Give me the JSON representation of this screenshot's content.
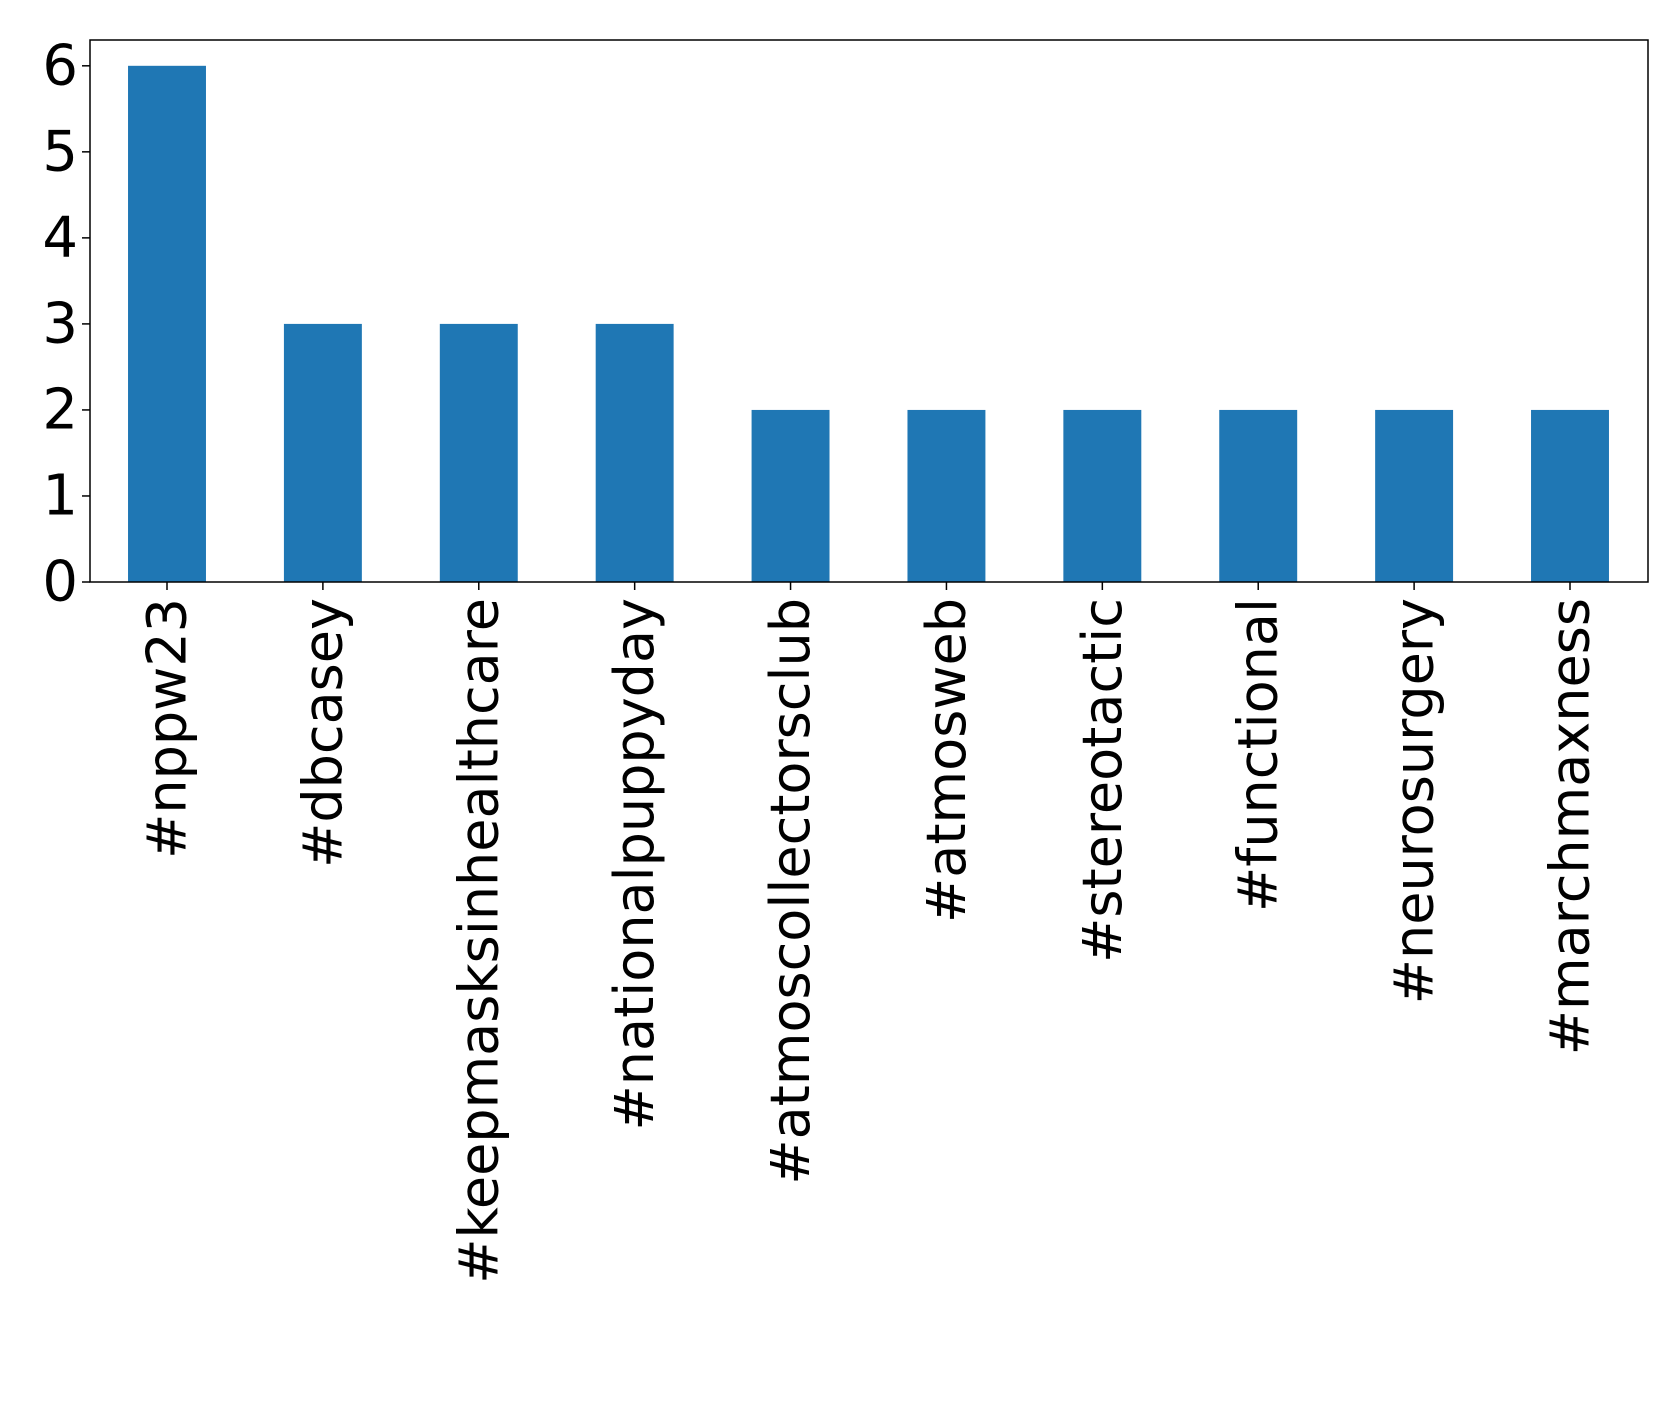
{
  "chart_data": {
    "type": "bar",
    "title": "",
    "xlabel": "",
    "ylabel": "",
    "categories": [
      "#nppw23",
      "#dbcasey",
      "#keepmasksinhealthcare",
      "#nationalpuppyday",
      "#atmoscollectorsclub",
      "#atmosweb",
      "#stereotactic",
      "#functional",
      "#neurosurgery",
      "#marchmaxness"
    ],
    "values": [
      6,
      3,
      3,
      3,
      2,
      2,
      2,
      2,
      2,
      2
    ],
    "ylim": [
      0,
      6.3
    ],
    "yticks": [
      0,
      1,
      2,
      3,
      4,
      5,
      6
    ],
    "bar_color": "#1f77b4",
    "grid": false,
    "legend": "none"
  }
}
